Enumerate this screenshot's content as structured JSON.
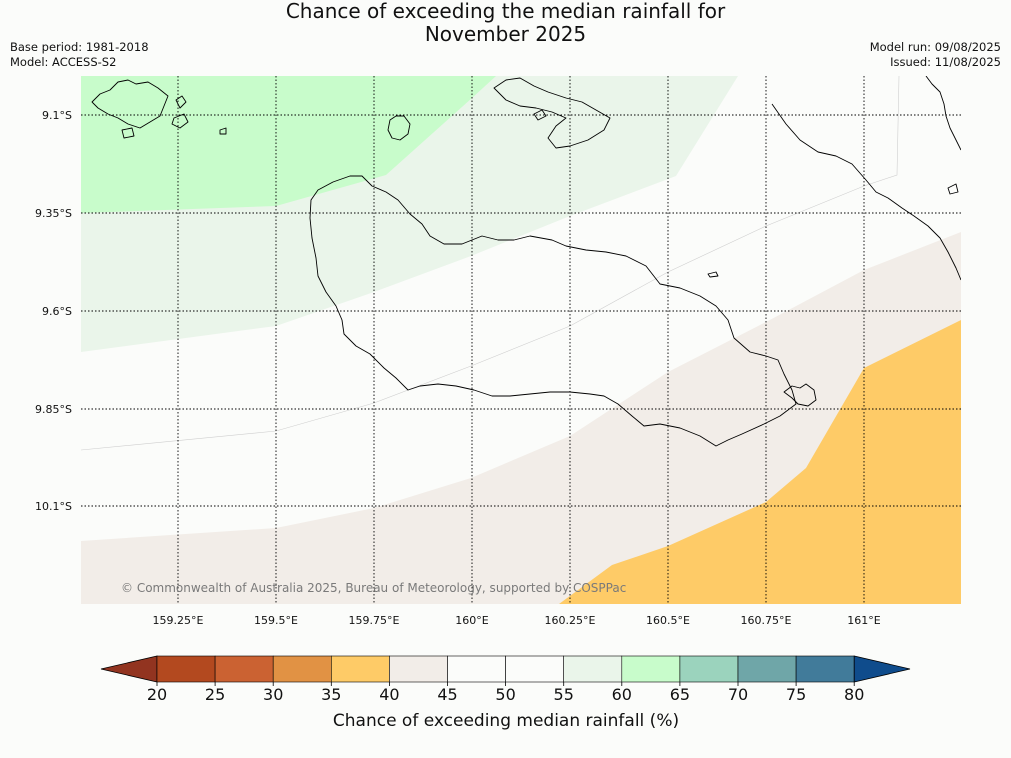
{
  "header": {
    "title_line1": "Chance of exceeding the median rainfall for",
    "title_line2": "November 2025",
    "base_period": "Base period: 1981-2018",
    "model": "Model: ACCESS-S2",
    "model_run": "Model run: 09/08/2025",
    "issued": "Issued: 11/08/2025"
  },
  "map": {
    "lon_labels": [
      "159.25°E",
      "159.5°E",
      "159.75°E",
      "160°E",
      "160.25°E",
      "160.5°E",
      "160.75°E",
      "161°E"
    ],
    "lat_labels": [
      "9.1°S",
      "9.35°S",
      "9.6°S",
      "9.85°S",
      "10.1°S"
    ],
    "credit": "© Commonwealth of Australia 2025, Bureau of Meteorology, supported by COSPPac",
    "colors": {
      "land_outline": "#000000",
      "band_35_40": "#fecb67",
      "band_45_50": "#f2ede8",
      "band_50_55": "#fbfcfa",
      "band_55_60": "#eaf5ea",
      "band_60_65": "#c8fccb"
    }
  },
  "colorbar": {
    "ticks": [
      "20",
      "25",
      "30",
      "35",
      "40",
      "45",
      "50",
      "55",
      "60",
      "65",
      "70",
      "75",
      "80"
    ],
    "colors": [
      "#b3491f",
      "#cb6232",
      "#e19244",
      "#fecb67",
      "#f2ede8",
      "#fbfcfa",
      "#fbfcfa",
      "#eaf5ea",
      "#c8fccb",
      "#9bd3bd",
      "#6fa6a8",
      "#417b9a"
    ],
    "under_color": "#923420",
    "over_color": "#0f4c8c",
    "label": "Chance of exceeding median rainfall (%)"
  }
}
